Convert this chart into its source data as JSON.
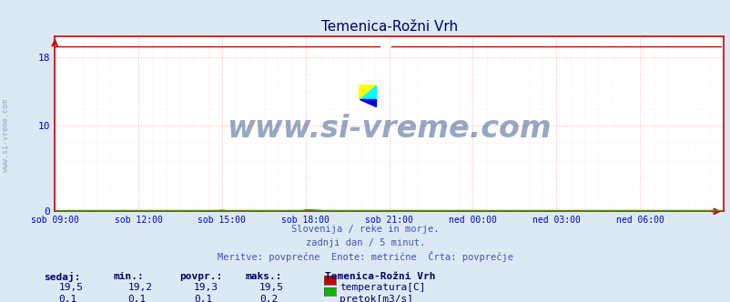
{
  "title": "Temenica-Rožni Vrh",
  "bg_color": "#dce9f5",
  "plot_bg_color": "#ffffff",
  "grid_color_major": "#ffbbbb",
  "grid_color_minor": "#ffe8e8",
  "xlabel_color": "#0000cc",
  "ylabel_color": "#0000cc",
  "title_color": "#000066",
  "watermark": "www.si-vreme.com",
  "watermark_color": "#1a3d7c",
  "footer_lines": [
    "Slovenija / reke in morje.",
    "zadnji dan / 5 minut.",
    "Meritve: povprečne  Enote: metrične  Črta: povprečje"
  ],
  "footer_color": "#4455aa",
  "legend_title": "Temenica-Rožni Vrh",
  "legend_title_color": "#000066",
  "legend_items": [
    {
      "label": "temperatura[C]",
      "color": "#cc0000"
    },
    {
      "label": "pretok[m3/s]",
      "color": "#00bb00"
    }
  ],
  "table_headers": [
    "sedaj:",
    "min.:",
    "povpr.:",
    "maks.:"
  ],
  "table_data": [
    [
      "19,5",
      "19,2",
      "19,3",
      "19,5"
    ],
    [
      "0,1",
      "0,1",
      "0,1",
      "0,2"
    ]
  ],
  "table_color": "#000066",
  "xtick_labels": [
    "sob 09:00",
    "sob 12:00",
    "sob 15:00",
    "sob 18:00",
    "sob 21:00",
    "ned 00:00",
    "ned 03:00",
    "ned 06:00"
  ],
  "xtick_positions": [
    0,
    36,
    72,
    108,
    144,
    180,
    216,
    252
  ],
  "yticks_left": [
    0,
    10,
    18
  ],
  "ylim": [
    0,
    20.5
  ],
  "xlim": [
    0,
    288
  ],
  "temp_value": 19.3,
  "temp_color": "#cc0000",
  "flow_color": "#00bb00",
  "n_points": 288,
  "left_text": "www.si-vreme.com",
  "left_text_color": "#7799bb"
}
